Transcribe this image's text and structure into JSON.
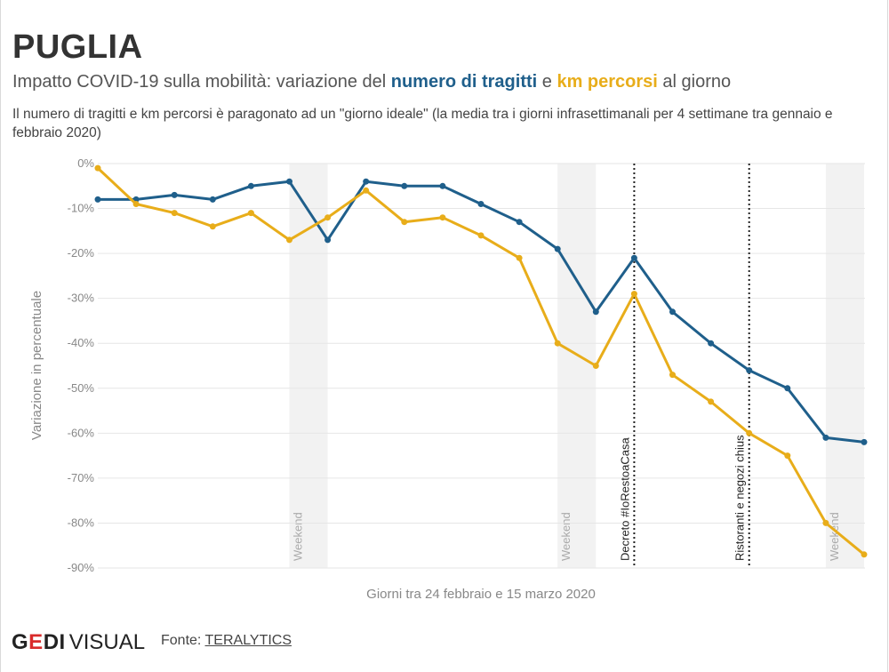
{
  "header": {
    "title": "PUGLIA",
    "subtitle_prefix": "Impatto COVID-19 sulla mobilità: variazione del",
    "subtitle_series1": "numero di tragitti",
    "subtitle_mid": "e",
    "subtitle_series2": "km percorsi",
    "subtitle_suffix": "al giorno",
    "note": "Il numero di tragitti e km percorsi è paragonato ad un \"giorno ideale\" (la media tra i giorni infrasettimanali per 4 settimane tra gennaio e febbraio 2020)"
  },
  "footer": {
    "logo_gedi_g": "G",
    "logo_gedi_e": "E",
    "logo_gedi_di": "DI",
    "logo_visual": "VISUAL",
    "source_label": "Fonte:",
    "source_name": "TERALYTICS"
  },
  "colors": {
    "trips": "#1f5f8b",
    "km": "#e8ad1a",
    "weekend": "#f2f2f2",
    "grid": "#e6e6e6",
    "axis_text": "#888888"
  },
  "chart_data": {
    "type": "line",
    "xlabel": "Giorni tra 24 febbraio e 15 marzo 2020",
    "ylabel": "Variazione in percentuale",
    "ylim": [
      -90,
      0
    ],
    "yticks": [
      0,
      -10,
      -20,
      -30,
      -40,
      -50,
      -60,
      -70,
      -80,
      -90
    ],
    "ytick_labels": [
      "0%",
      "-10%",
      "-20%",
      "-30%",
      "-40%",
      "-50%",
      "-60%",
      "-70%",
      "-80%",
      "-90%"
    ],
    "x_start_date": "2020-02-24",
    "x_end_date": "2020-03-15",
    "series": [
      {
        "key": "trips",
        "values": [
          -8,
          -8,
          -7,
          -8,
          -5,
          -4,
          -17,
          -4,
          -5,
          -5,
          -9,
          -13,
          -19,
          -33,
          -21,
          -33,
          -40,
          -46,
          -50,
          -61,
          -62
        ]
      },
      {
        "key": "km",
        "values": [
          -1,
          -9,
          -11,
          -14,
          -11,
          -17,
          -12,
          -6,
          -13,
          -12,
          -16,
          -21,
          -40,
          -45,
          -29,
          -47,
          -53,
          -60,
          -65,
          -80,
          -87
        ]
      }
    ],
    "weekend_bands": [
      {
        "label": "Weekend",
        "start_index": 5,
        "end_index": 6
      },
      {
        "label": "Weekend",
        "start_index": 12,
        "end_index": 13
      },
      {
        "label": "Weekend",
        "start_index": 19,
        "end_index": 20
      }
    ],
    "events": [
      {
        "label": "Decreto #IoRestoaCasa",
        "index": 14
      },
      {
        "label": "Ristoranti e negozi chius",
        "index": 17
      }
    ],
    "grid": true
  }
}
